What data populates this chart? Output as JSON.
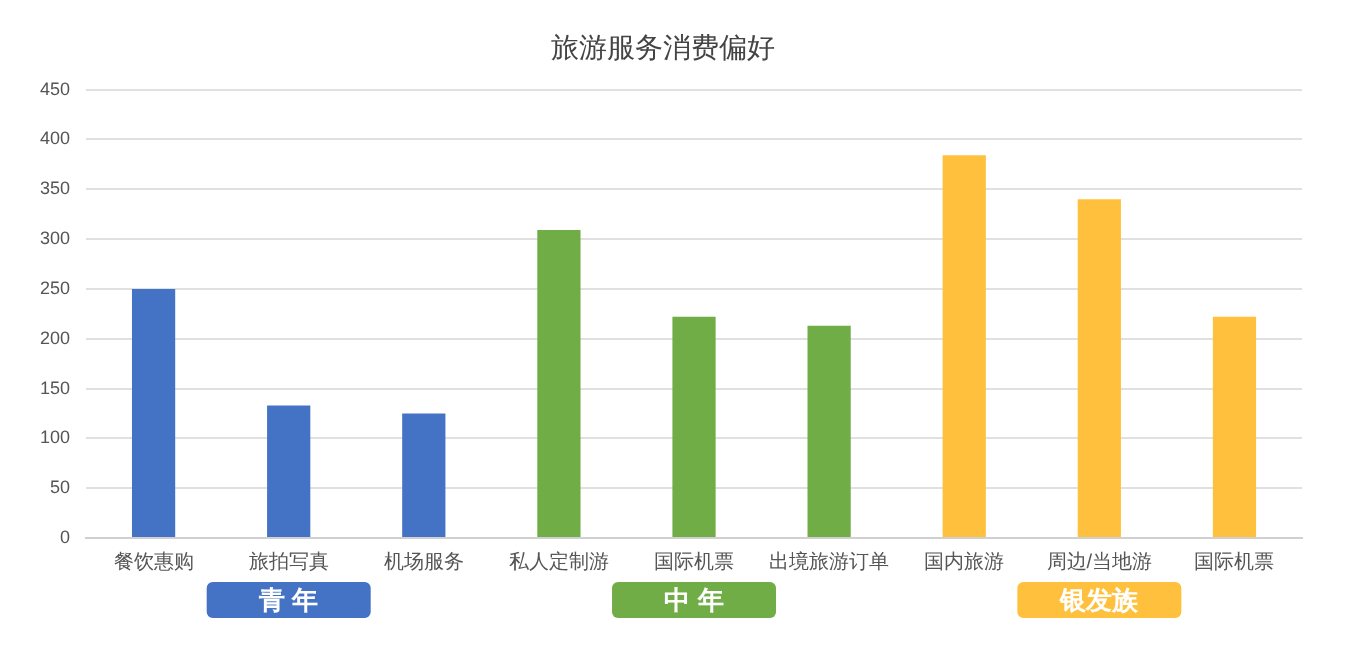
{
  "chart_data": {
    "type": "bar",
    "title": "旅游服务消费偏好",
    "categories": [
      "餐饮惠购",
      "旅拍写真",
      "机场服务",
      "私人定制游",
      "国际机票",
      "出境旅游订单",
      "国内旅游",
      "周边/当地游",
      "国际机票"
    ],
    "series": [
      {
        "name": "青 年",
        "color": "#4472c4",
        "values": [
          250,
          133,
          125,
          null,
          null,
          null,
          null,
          null,
          null
        ]
      },
      {
        "name": "中 年",
        "color": "#70ad47",
        "values": [
          null,
          null,
          null,
          309,
          222,
          213,
          null,
          null,
          null
        ]
      },
      {
        "name": "银发族",
        "color": "#ffc03d",
        "values": [
          null,
          null,
          null,
          null,
          null,
          null,
          384,
          340,
          222
        ]
      }
    ],
    "ylim": [
      0,
      450
    ],
    "yticks": [
      0,
      50,
      100,
      150,
      200,
      250,
      300,
      350,
      400,
      450
    ],
    "grid": "y",
    "legend": false
  }
}
